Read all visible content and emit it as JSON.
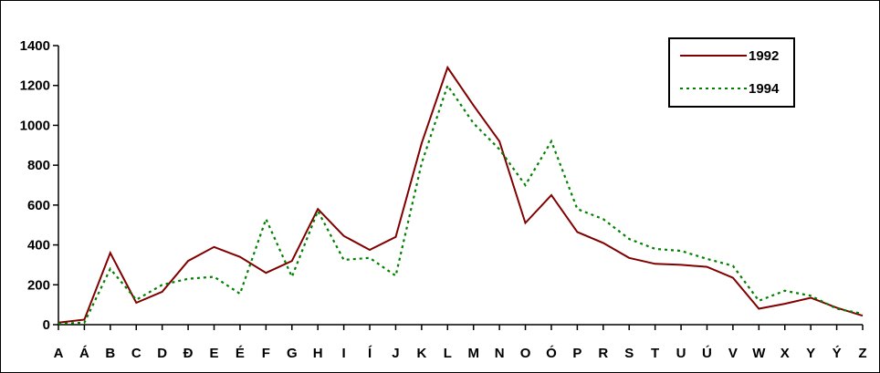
{
  "chart_data": {
    "type": "line",
    "categories": [
      "A",
      "Á",
      "B",
      "C",
      "D",
      "Đ",
      "E",
      "É",
      "F",
      "G",
      "H",
      "I",
      "Í",
      "J",
      "K",
      "L",
      "M",
      "N",
      "O",
      "Ó",
      "P",
      "R",
      "S",
      "T",
      "U",
      "Ú",
      "V",
      "W",
      "X",
      "Y",
      "Ý",
      "Z"
    ],
    "ylim": [
      0,
      1400
    ],
    "yticks": [
      0,
      200,
      400,
      600,
      800,
      1000,
      1200,
      1400
    ],
    "grid": false,
    "legend_position": "top-right",
    "series": [
      {
        "name": "1992",
        "color": "#800000",
        "style": "solid",
        "values": [
          10,
          25,
          360,
          110,
          165,
          320,
          390,
          340,
          260,
          320,
          580,
          445,
          375,
          440,
          910,
          1290,
          1100,
          920,
          510,
          650,
          465,
          410,
          335,
          305,
          300,
          290,
          235,
          80,
          105,
          135,
          85,
          45
        ]
      },
      {
        "name": "1994",
        "color": "#008000",
        "style": "dotted",
        "values": [
          5,
          10,
          280,
          125,
          200,
          230,
          240,
          155,
          530,
          240,
          570,
          325,
          335,
          245,
          810,
          1200,
          1010,
          880,
          700,
          920,
          580,
          530,
          430,
          380,
          370,
          330,
          295,
          120,
          170,
          145,
          80,
          55
        ]
      }
    ]
  }
}
